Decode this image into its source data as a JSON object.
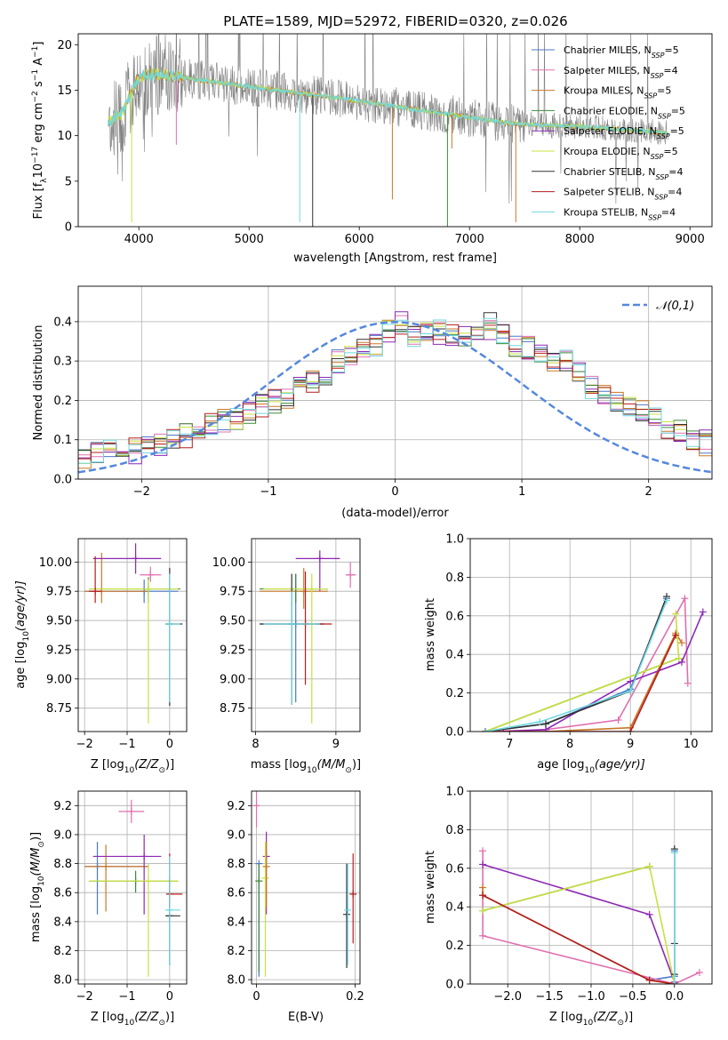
{
  "figure": {
    "title": "PLATE=1589, MJD=52972, FIBERID=0320, z=0.026"
  },
  "models": [
    {
      "name": "Chabrier MILES, N",
      "sub": "SSP",
      "n": "=5",
      "color": "#4a78c8"
    },
    {
      "name": "Salpeter MILES, N",
      "sub": "SSP",
      "n": "=4",
      "color": "#e070b0"
    },
    {
      "name": "Kroupa MILES, N",
      "sub": "SSP",
      "n": "=5",
      "color": "#c87828"
    },
    {
      "name": "Chabrier ELODIE, N",
      "sub": "SSP",
      "n": "=5",
      "color": "#3c8a3c"
    },
    {
      "name": "Salpeter ELODIE, N",
      "sub": "SSP",
      "n": "=5",
      "color": "#8c28b4"
    },
    {
      "name": "Kroupa ELODIE, N",
      "sub": "SSP",
      "n": "=5",
      "color": "#c8e040"
    },
    {
      "name": "Chabrier STELIB, N",
      "sub": "SSP",
      "n": "=4",
      "color": "#333333"
    },
    {
      "name": "Salpeter STELIB, N",
      "sub": "SSP",
      "n": "=4",
      "color": "#b41e1e"
    },
    {
      "name": "Kroupa STELIB, N",
      "sub": "SSP",
      "n": "=4",
      "color": "#70d8e0"
    }
  ],
  "chart_data": [
    {
      "id": "spectrum",
      "type": "line",
      "xlabel": "wavelength [Angstrom, rest frame]",
      "ylabel": "Flux [f",
      "ylabel_sub": "λ",
      "ylabel_rest": "10",
      "ylabel_exp": "−17",
      "ylabel_tail": " erg cm",
      "ylabel_exp2": "−2",
      "ylabel_tail2": " s",
      "ylabel_exp3": "−1",
      "ylabel_tail3": " A",
      "ylabel_exp4": "−1",
      "ylabel_end": "]",
      "xlim": [
        3450,
        9200
      ],
      "ylim": [
        0,
        21.2
      ],
      "xticks": [
        4000,
        5000,
        6000,
        7000,
        8000,
        9000
      ],
      "yticks": [
        0,
        5,
        10,
        15,
        20
      ],
      "continuum": [
        [
          3720,
          11.5
        ],
        [
          3850,
          12.5
        ],
        [
          4000,
          16.5
        ],
        [
          4200,
          16.8
        ],
        [
          4500,
          16.2
        ],
        [
          5000,
          15.4
        ],
        [
          5500,
          14.6
        ],
        [
          6000,
          13.8
        ],
        [
          6500,
          12.9
        ],
        [
          7000,
          12.0
        ],
        [
          7400,
          11.3
        ],
        [
          8000,
          11.0
        ],
        [
          8600,
          10.5
        ],
        [
          8800,
          10.3
        ]
      ],
      "spikes": [
        [
          3935,
          0.5
        ],
        [
          4340,
          9.0
        ],
        [
          5460,
          0.5
        ],
        [
          5577,
          0.0
        ],
        [
          6300,
          3.0
        ],
        [
          6800,
          0.0
        ],
        [
          6840,
          8.6
        ],
        [
          7420,
          0.5
        ]
      ]
    },
    {
      "id": "residuals",
      "type": "histogram",
      "xlabel": "(data-model)/error",
      "ylabel": "Normed distribution",
      "legend": "𝒩(0,1)",
      "xlim": [
        -2.5,
        2.5
      ],
      "ylim": [
        0,
        0.49
      ],
      "xticks": [
        -2,
        -1,
        0,
        1,
        2
      ],
      "xticklabels": [
        "−2",
        "−1",
        "0",
        "1",
        "2"
      ],
      "yticks": [
        0.0,
        0.1,
        0.2,
        0.3,
        0.4
      ],
      "bin_width": 0.1,
      "bin_start": -2.5,
      "base_hist": [
        0.06,
        0.07,
        0.08,
        0.08,
        0.08,
        0.09,
        0.09,
        0.1,
        0.11,
        0.12,
        0.14,
        0.15,
        0.15,
        0.17,
        0.19,
        0.2,
        0.2,
        0.23,
        0.25,
        0.27,
        0.3,
        0.31,
        0.33,
        0.34,
        0.37,
        0.39,
        0.36,
        0.38,
        0.38,
        0.36,
        0.36,
        0.37,
        0.39,
        0.37,
        0.34,
        0.33,
        0.32,
        0.3,
        0.3,
        0.27,
        0.23,
        0.21,
        0.19,
        0.18,
        0.17,
        0.15,
        0.13,
        0.12,
        0.1,
        0.09
      ]
    },
    {
      "id": "age-vs-Z",
      "type": "scatter",
      "xlabel": "Z [log",
      "xlabel_sub": "10",
      "xlabel_rest": "(Z/Z",
      "xlabel_sun": "⊙",
      "xlabel_end": ")]",
      "ylabel": "age  [log",
      "ylabel_sub": "10",
      "ylabel_rest": "(age/yr)]",
      "xlim": [
        -2.15,
        0.4
      ],
      "ylim": [
        8.55,
        10.2
      ],
      "xticks": [
        -2,
        -1,
        0
      ],
      "xticklabels": [
        "−2",
        "−1",
        "0"
      ],
      "yticks": [
        8.75,
        9.0,
        9.25,
        9.5,
        9.75,
        10.0
      ],
      "points": [
        {
          "m": 0,
          "x": -0.6,
          "y": 9.75,
          "ex": [
            -2.0,
            0.2
          ],
          "ey": [
            9.65,
            9.85
          ]
        },
        {
          "m": 1,
          "x": -0.45,
          "y": 9.89,
          "ex": [
            -0.7,
            -0.2
          ],
          "ey": [
            9.83,
            9.96
          ]
        },
        {
          "m": 2,
          "x": -1.6,
          "y": 9.75,
          "ex": [
            -2.0,
            -0.5
          ],
          "ey": [
            9.65,
            10.08
          ]
        },
        {
          "m": 3,
          "x": -0.5,
          "y": 9.77,
          "ex": [
            -1.9,
            0.25
          ],
          "ey": [
            9.65,
            9.87
          ]
        },
        {
          "m": 4,
          "x": -0.8,
          "y": 10.03,
          "ex": [
            -1.8,
            -0.2
          ],
          "ey": [
            9.9,
            10.16
          ]
        },
        {
          "m": 5,
          "x": -0.5,
          "y": 9.77,
          "ex": [
            -1.9,
            0.2
          ],
          "ey": [
            8.62,
            9.85
          ]
        },
        {
          "m": 6,
          "x": 0.0,
          "y": 9.47,
          "ex": [
            -0.1,
            0.3
          ],
          "ey": [
            8.77,
            9.95
          ]
        },
        {
          "m": 7,
          "x": -1.75,
          "y": 9.75,
          "ex": [
            -1.9,
            -1.6
          ],
          "ey": [
            9.65,
            10.05
          ]
        },
        {
          "m": 8,
          "x": 0.0,
          "y": 9.47,
          "ex": [
            -0.1,
            0.25
          ],
          "ey": [
            8.8,
            9.9
          ]
        }
      ]
    },
    {
      "id": "age-vs-mass",
      "type": "scatter",
      "xlabel": "mass [log",
      "xlabel_sub": "10",
      "xlabel_rest": "(M/M",
      "xlabel_sun": "⊙",
      "xlabel_end": ")]",
      "xlim": [
        7.95,
        9.3
      ],
      "ylim": [
        8.55,
        10.2
      ],
      "xticks": [
        8,
        9
      ],
      "xticklabels": [
        "8",
        "9"
      ],
      "yticks": [
        8.75,
        9.0,
        9.25,
        9.5,
        9.75,
        10.0
      ],
      "points": [
        {
          "m": 0,
          "x": 8.5,
          "y": 9.47,
          "ex": [
            8.05,
            8.85
          ],
          "ey": [
            8.8,
            9.9
          ]
        },
        {
          "m": 1,
          "x": 9.18,
          "y": 9.89,
          "ex": [
            9.12,
            9.25
          ],
          "ey": [
            9.78,
            10.0
          ]
        },
        {
          "m": 2,
          "x": 8.6,
          "y": 9.75,
          "ex": [
            8.05,
            8.9
          ],
          "ey": [
            9.6,
            9.95
          ]
        },
        {
          "m": 3,
          "x": 8.5,
          "y": 9.77,
          "ex": [
            8.05,
            8.9
          ],
          "ey": [
            9.65,
            9.9
          ]
        },
        {
          "m": 4,
          "x": 8.8,
          "y": 10.03,
          "ex": [
            8.5,
            9.05
          ],
          "ey": [
            9.75,
            10.1
          ]
        },
        {
          "m": 5,
          "x": 8.7,
          "y": 9.77,
          "ex": [
            8.1,
            8.9
          ],
          "ey": [
            8.62,
            9.9
          ]
        },
        {
          "m": 6,
          "x": 8.45,
          "y": 9.47,
          "ex": [
            8.05,
            8.85
          ],
          "ey": [
            8.78,
            9.9
          ]
        },
        {
          "m": 7,
          "x": 8.62,
          "y": 9.47,
          "ex": [
            8.75,
            8.95
          ],
          "ey": [
            8.95,
            9.92
          ]
        },
        {
          "m": 8,
          "x": 8.45,
          "y": 9.47,
          "ex": [
            8.1,
            8.8
          ],
          "ey": [
            8.78,
            9.75
          ]
        }
      ]
    },
    {
      "id": "weight-vs-age",
      "type": "line",
      "xlabel": "age  [log",
      "xlabel_sub": "10",
      "xlabel_rest": "(age/yr)]",
      "ylabel": "mass weight",
      "xlim": [
        6.35,
        10.35
      ],
      "ylim": [
        0,
        1.0
      ],
      "xticks": [
        7,
        8,
        9,
        10
      ],
      "xticklabels": [
        "7",
        "8",
        "9",
        "10"
      ],
      "yticks": [
        0.0,
        0.2,
        0.4,
        0.6,
        0.8,
        1.0
      ],
      "series": [
        {
          "m": 0,
          "x": [
            6.6,
            7.6,
            9.0,
            9.6
          ],
          "y": [
            0.0,
            0.04,
            0.22,
            0.69
          ]
        },
        {
          "m": 1,
          "x": [
            6.6,
            7.6,
            8.8,
            9.9,
            9.95
          ],
          "y": [
            0.0,
            0.01,
            0.06,
            0.69,
            0.25
          ]
        },
        {
          "m": 2,
          "x": [
            6.6,
            7.6,
            9.0,
            9.75,
            9.85
          ],
          "y": [
            0.0,
            0.0,
            0.02,
            0.51,
            0.46
          ]
        },
        {
          "m": 3,
          "x": [
            6.6,
            9.8
          ],
          "y": [
            0.0,
            0.38
          ]
        },
        {
          "m": 4,
          "x": [
            6.9,
            7.6,
            9.0,
            9.85,
            10.2
          ],
          "y": [
            0.0,
            0.01,
            0.26,
            0.36,
            0.62
          ]
        },
        {
          "m": 5,
          "x": [
            6.6,
            9.8,
            9.75
          ],
          "y": [
            0.0,
            0.38,
            0.61
          ]
        },
        {
          "m": 6,
          "x": [
            6.6,
            7.6,
            9.0,
            9.6
          ],
          "y": [
            0.0,
            0.04,
            0.21,
            0.7
          ]
        },
        {
          "m": 7,
          "x": [
            6.6,
            9.0,
            9.75
          ],
          "y": [
            0.0,
            0.0,
            0.5
          ]
        },
        {
          "m": 8,
          "x": [
            6.6,
            7.5,
            9.0,
            9.6
          ],
          "y": [
            0.0,
            0.05,
            0.21,
            0.68
          ]
        }
      ]
    },
    {
      "id": "mass-vs-Z",
      "type": "scatter",
      "xlabel": "Z [log",
      "xlabel_sub": "10",
      "xlabel_rest": "(Z/Z",
      "xlabel_sun": "⊙",
      "xlabel_end": ")]",
      "ylabel": "mass [log",
      "ylabel_sub": "10",
      "ylabel_rest": "(M/M",
      "ylabel_sun": "⊙",
      "ylabel_end": ")]",
      "xlim": [
        -2.15,
        0.4
      ],
      "ylim": [
        7.97,
        9.3
      ],
      "xticks": [
        -2,
        -1,
        0
      ],
      "xticklabels": [
        "−2",
        "−1",
        "0"
      ],
      "yticks": [
        8.0,
        8.2,
        8.4,
        8.6,
        8.8,
        9.0,
        9.2
      ],
      "points": [
        {
          "m": 0,
          "x": -1.7,
          "y": 8.78,
          "ex": [
            -2.0,
            -0.5
          ],
          "ey": [
            8.45,
            8.95
          ]
        },
        {
          "m": 1,
          "x": -0.9,
          "y": 9.16,
          "ex": [
            -1.2,
            -0.6
          ],
          "ey": [
            9.08,
            9.24
          ]
        },
        {
          "m": 2,
          "x": -1.5,
          "y": 8.78,
          "ex": [
            -2.0,
            -0.5
          ],
          "ey": [
            8.47,
            8.93
          ]
        },
        {
          "m": 3,
          "x": -0.8,
          "y": 8.68,
          "ex": [
            -1.9,
            0.2
          ],
          "ey": [
            8.6,
            8.75
          ]
        },
        {
          "m": 4,
          "x": -0.6,
          "y": 8.85,
          "ex": [
            -1.8,
            -0.2
          ],
          "ey": [
            8.45,
            9.0
          ]
        },
        {
          "m": 5,
          "x": -0.5,
          "y": 8.68,
          "ex": [
            -1.9,
            0.2
          ],
          "ey": [
            8.02,
            8.8
          ]
        },
        {
          "m": 6,
          "x": 0.0,
          "y": 8.44,
          "ex": [
            -0.1,
            0.25
          ],
          "ey": [
            8.1,
            8.7
          ]
        },
        {
          "m": 7,
          "x": 0.0,
          "y": 8.59,
          "ex": [
            -0.05,
            0.3
          ],
          "ey": [
            8.5,
            8.87
          ]
        },
        {
          "m": 8,
          "x": 0.0,
          "y": 8.48,
          "ex": [
            -0.1,
            0.25
          ],
          "ey": [
            8.1,
            8.85
          ]
        }
      ]
    },
    {
      "id": "mass-vs-ebv",
      "type": "scatter",
      "xlabel": "E(B-V)",
      "xlim": [
        -0.01,
        0.21
      ],
      "ylim": [
        7.97,
        9.3
      ],
      "xticks": [
        0.0,
        0.2
      ],
      "xticklabels": [
        "0",
        "0.2"
      ],
      "yticks": [
        8.0,
        8.2,
        8.4,
        8.6,
        8.8,
        9.0,
        9.2
      ],
      "points": [
        {
          "m": 1,
          "x": 0.0,
          "y": 9.2,
          "ey": [
            9.05,
            9.3
          ]
        },
        {
          "m": 0,
          "x": 0.005,
          "y": 8.8,
          "ey": [
            8.02,
            8.8
          ]
        },
        {
          "m": 3,
          "x": 0.005,
          "y": 8.68,
          "ey": [
            8.05,
            8.8
          ]
        },
        {
          "m": 4,
          "x": 0.02,
          "y": 8.85,
          "ey": [
            8.45,
            9.02
          ]
        },
        {
          "m": 5,
          "x": 0.018,
          "y": 8.7,
          "ey": [
            8.02,
            8.95
          ]
        },
        {
          "m": 2,
          "x": 0.02,
          "y": 8.78,
          "ey": [
            8.5,
            8.95
          ]
        },
        {
          "m": 6,
          "x": 0.183,
          "y": 8.45,
          "ey": [
            8.08,
            8.8
          ]
        },
        {
          "m": 8,
          "x": 0.185,
          "y": 8.48,
          "ey": [
            8.1,
            8.8
          ]
        },
        {
          "m": 7,
          "x": 0.196,
          "y": 8.59,
          "ey": [
            8.25,
            8.87
          ]
        }
      ]
    },
    {
      "id": "weight-vs-Z",
      "type": "line",
      "xlabel": "Z [log",
      "xlabel_sub": "10",
      "xlabel_rest": "(Z/Z",
      "xlabel_sun": "⊙",
      "xlabel_end": ")]",
      "ylabel": "mass weight",
      "xlim": [
        -2.45,
        0.45
      ],
      "ylim": [
        0,
        1.0
      ],
      "xticks": [
        -2.0,
        -1.5,
        -1.0,
        -0.5,
        0.0
      ],
      "xticklabels": [
        "−2.0",
        "−1.5",
        "−1.0",
        "−0.5",
        "0.0"
      ],
      "yticks": [
        0.0,
        0.2,
        0.4,
        0.6,
        0.8,
        1.0
      ],
      "series": [
        {
          "m": 0,
          "x": [
            -2.3,
            -0.3,
            0.0,
            0.0
          ],
          "y": [
            0.46,
            0.02,
            0.04,
            0.69
          ]
        },
        {
          "m": 1,
          "x": [
            -2.3,
            -2.3,
            0.0,
            0.3
          ],
          "y": [
            0.69,
            0.25,
            0.0,
            0.06
          ]
        },
        {
          "m": 2,
          "x": [
            -2.3,
            -2.3,
            -0.3,
            0.0
          ],
          "y": [
            0.5,
            0.46,
            0.02,
            0.0
          ]
        },
        {
          "m": 3,
          "x": [
            -2.3,
            -0.3
          ],
          "y": [
            0.38,
            0.61
          ]
        },
        {
          "m": 4,
          "x": [
            -2.3,
            -0.3,
            0.0
          ],
          "y": [
            0.62,
            0.36,
            0.01
          ]
        },
        {
          "m": 5,
          "x": [
            -2.3,
            -0.3,
            0.0
          ],
          "y": [
            0.38,
            0.61,
            0.0
          ]
        },
        {
          "m": 6,
          "x": [
            0.0,
            0.0,
            0.0
          ],
          "y": [
            0.05,
            0.21,
            0.7
          ]
        },
        {
          "m": 7,
          "x": [
            -2.3,
            -0.3,
            0.0
          ],
          "y": [
            0.46,
            0.02,
            0.0
          ]
        },
        {
          "m": 8,
          "x": [
            0.0,
            0.0
          ],
          "y": [
            0.68,
            0.0
          ]
        }
      ]
    }
  ]
}
